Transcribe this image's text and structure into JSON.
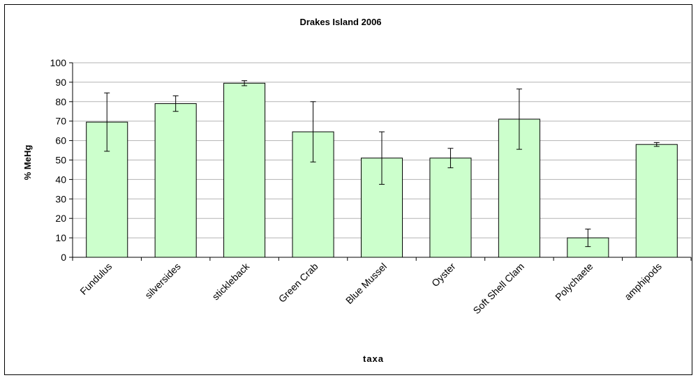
{
  "chart_data": {
    "type": "bar",
    "title": "Drakes Island 2006",
    "xlabel": "taxa",
    "ylabel": "% MeHg",
    "ylim": [
      0,
      100
    ],
    "yticks": [
      0,
      10,
      20,
      30,
      40,
      50,
      60,
      70,
      80,
      90,
      100
    ],
    "grid": true,
    "legend": "none",
    "bar_color": "#ccffcc",
    "categories": [
      "Fundulus",
      "silversides",
      "stickleback",
      "Green Crab",
      "Blue Mussel",
      "Oyster",
      "Soft Shell Clam",
      "Polychaete",
      "amphipods"
    ],
    "values": [
      69.5,
      79,
      89.5,
      64.5,
      51,
      51,
      71,
      10,
      58
    ],
    "error": [
      15,
      4,
      1.3,
      15.5,
      13.5,
      5,
      15.5,
      4.5,
      1
    ]
  }
}
